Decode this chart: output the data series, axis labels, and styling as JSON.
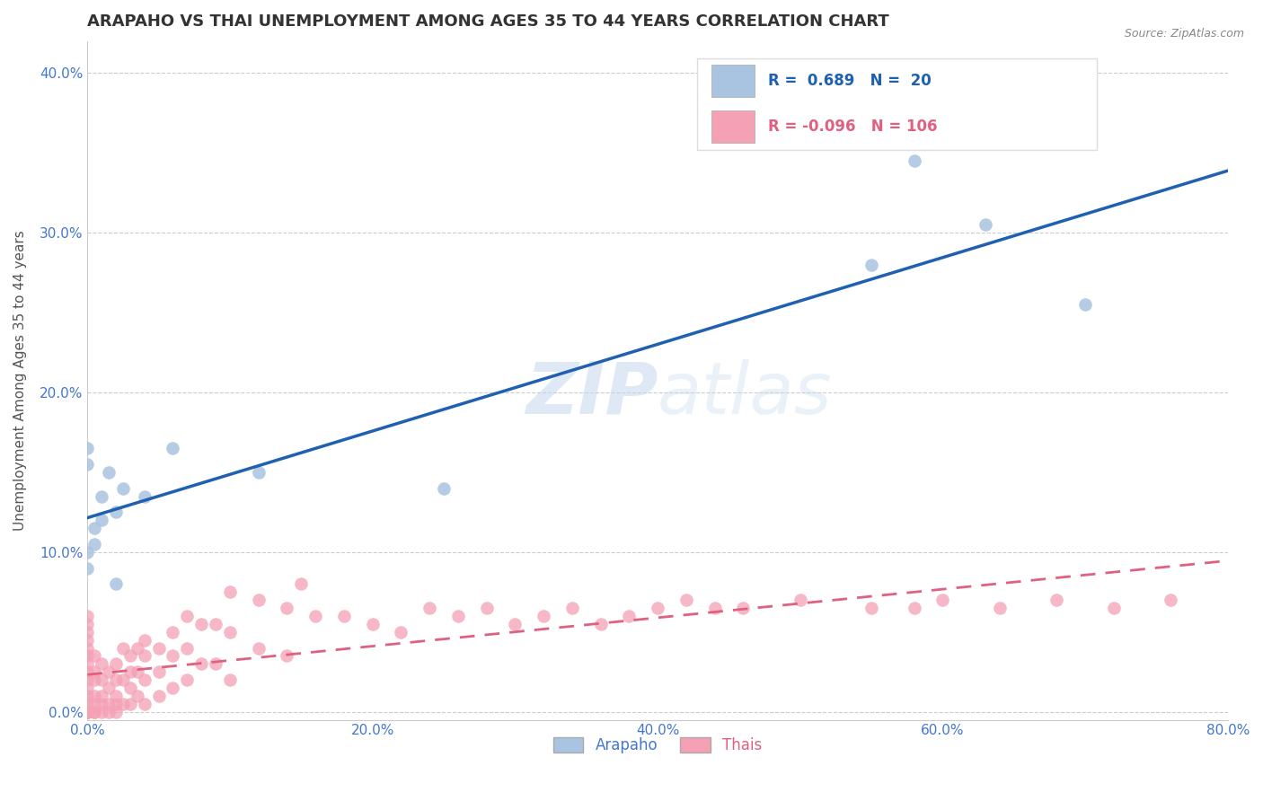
{
  "title": "ARAPAHO VS THAI UNEMPLOYMENT AMONG AGES 35 TO 44 YEARS CORRELATION CHART",
  "source_text": "Source: ZipAtlas.com",
  "ylabel": "Unemployment Among Ages 35 to 44 years",
  "watermark": "ZIPatlas",
  "arapaho_color": "#a8c4e0",
  "thai_color": "#f4a0b5",
  "arapaho_line_color": "#2060b0",
  "thai_line_color": "#e06080",
  "xlim": [
    0.0,
    0.8
  ],
  "ylim": [
    -0.005,
    0.42
  ],
  "yticks": [
    0.0,
    0.1,
    0.2,
    0.3,
    0.4
  ],
  "xticks": [
    0.0,
    0.2,
    0.4,
    0.6,
    0.8
  ],
  "arapaho_x": [
    0.0,
    0.0,
    0.0,
    0.0,
    0.005,
    0.005,
    0.01,
    0.01,
    0.015,
    0.02,
    0.02,
    0.025,
    0.04,
    0.06,
    0.12,
    0.25,
    0.55,
    0.58,
    0.63,
    0.7
  ],
  "arapaho_y": [
    0.155,
    0.165,
    0.1,
    0.09,
    0.105,
    0.115,
    0.12,
    0.135,
    0.15,
    0.125,
    0.08,
    0.14,
    0.135,
    0.165,
    0.15,
    0.14,
    0.28,
    0.345,
    0.305,
    0.255
  ],
  "thai_x": [
    0.0,
    0.0,
    0.0,
    0.0,
    0.0,
    0.0,
    0.0,
    0.0,
    0.0,
    0.0,
    0.0,
    0.0,
    0.0,
    0.0,
    0.0,
    0.0,
    0.0,
    0.0,
    0.005,
    0.005,
    0.005,
    0.005,
    0.005,
    0.005,
    0.005,
    0.01,
    0.01,
    0.01,
    0.01,
    0.01,
    0.015,
    0.015,
    0.015,
    0.015,
    0.02,
    0.02,
    0.02,
    0.02,
    0.02,
    0.025,
    0.025,
    0.025,
    0.03,
    0.03,
    0.03,
    0.03,
    0.035,
    0.035,
    0.035,
    0.04,
    0.04,
    0.04,
    0.04,
    0.05,
    0.05,
    0.05,
    0.06,
    0.06,
    0.06,
    0.07,
    0.07,
    0.07,
    0.08,
    0.08,
    0.09,
    0.09,
    0.1,
    0.1,
    0.1,
    0.12,
    0.12,
    0.14,
    0.14,
    0.15,
    0.16,
    0.18,
    0.2,
    0.22,
    0.24,
    0.26,
    0.28,
    0.3,
    0.32,
    0.34,
    0.36,
    0.38,
    0.4,
    0.42,
    0.44,
    0.46,
    0.5,
    0.55,
    0.58,
    0.6,
    0.64,
    0.68,
    0.72,
    0.76
  ],
  "thai_y": [
    0.04,
    0.035,
    0.03,
    0.025,
    0.02,
    0.015,
    0.01,
    0.005,
    0.0,
    0.0,
    0.0,
    0.0,
    0.0,
    0.0,
    0.06,
    0.055,
    0.05,
    0.045,
    0.035,
    0.025,
    0.02,
    0.01,
    0.005,
    0.0,
    0.0,
    0.03,
    0.02,
    0.01,
    0.005,
    0.0,
    0.025,
    0.015,
    0.005,
    0.0,
    0.03,
    0.02,
    0.01,
    0.005,
    0.0,
    0.04,
    0.02,
    0.005,
    0.035,
    0.025,
    0.015,
    0.005,
    0.04,
    0.025,
    0.01,
    0.045,
    0.035,
    0.02,
    0.005,
    0.04,
    0.025,
    0.01,
    0.05,
    0.035,
    0.015,
    0.06,
    0.04,
    0.02,
    0.055,
    0.03,
    0.055,
    0.03,
    0.075,
    0.05,
    0.02,
    0.07,
    0.04,
    0.065,
    0.035,
    0.08,
    0.06,
    0.06,
    0.055,
    0.05,
    0.065,
    0.06,
    0.065,
    0.055,
    0.06,
    0.065,
    0.055,
    0.06,
    0.065,
    0.07,
    0.065,
    0.065,
    0.07,
    0.065,
    0.065,
    0.07,
    0.065,
    0.07,
    0.065,
    0.07
  ],
  "background_color": "#ffffff",
  "grid_color": "#cccccc",
  "title_color": "#333333",
  "axis_label_color": "#555555",
  "tick_color": "#4477cc",
  "title_fontsize": 13,
  "label_fontsize": 11,
  "tick_fontsize": 11,
  "source_fontsize": 9
}
